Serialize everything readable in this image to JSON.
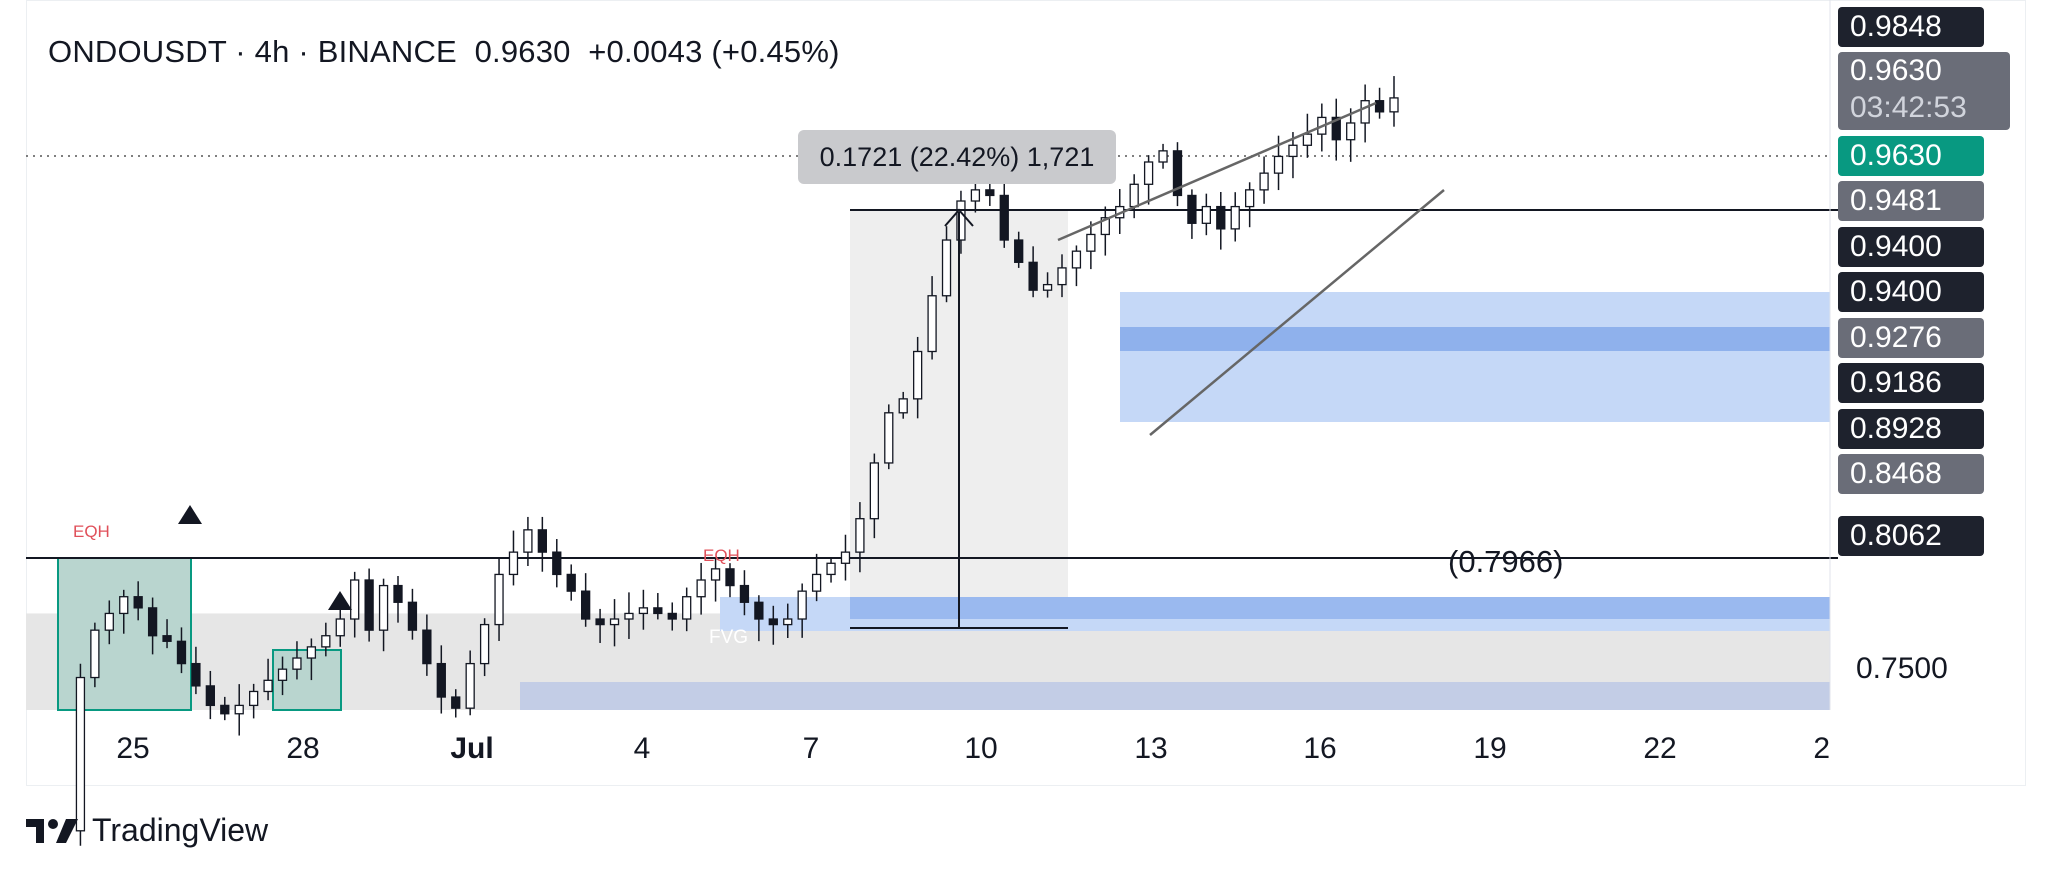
{
  "header": {
    "symbol": "ONDOUSDT",
    "separator_1": "·",
    "interval": "4h",
    "separator_2": "·",
    "exchange": "BINANCE",
    "last_price": "0.9630",
    "change": "+0.0043 (+0.45%)"
  },
  "price_axis": {
    "badges": [
      {
        "label": "0.9848",
        "style": "dark"
      },
      {
        "label": "0.9630",
        "style": "green"
      },
      {
        "label": "0.9481",
        "style": "gray"
      },
      {
        "label": "0.9400",
        "style": "dark"
      },
      {
        "label": "0.9400",
        "style": "dark"
      },
      {
        "label": "0.9276",
        "style": "gray"
      },
      {
        "label": "0.9186",
        "style": "dark"
      },
      {
        "label": "0.8928",
        "style": "dark"
      },
      {
        "label": "0.8468",
        "style": "gray"
      },
      {
        "label": "0.8062",
        "style": "dark"
      }
    ],
    "last_badge_price": "0.9630",
    "last_badge_countdown": "03:42:53",
    "plain_label": "0.7500"
  },
  "annotations": {
    "measure_label": "0.1721 (22.42%) 1,721",
    "level_label": "(0.7966)",
    "eqh_left": "EQH",
    "eqh_mid": "EQH",
    "fvg": "FVG"
  },
  "brand": {
    "name": "TradingView"
  },
  "colors": {
    "up_candle": "#ffffff",
    "candle_outline": "#131722",
    "zone_blue": "#c5d8f7",
    "zone_blue_dark": "#8fb1ec",
    "zone_gray": "#e6e6e6",
    "zone_teal": "#b9d5cf",
    "accent_green": "#089981"
  },
  "chart_data": {
    "type": "candlestick",
    "symbol": "ONDOUSDT",
    "interval": "4h",
    "exchange": "BINANCE",
    "x_ticks": [
      "25",
      "28",
      "Jul",
      "4",
      "7",
      "10",
      "13",
      "16",
      "19",
      "22",
      "25"
    ],
    "y_ticks": [
      "0.9848",
      "0.9630",
      "0.9481",
      "0.9400",
      "0.9400",
      "0.9276",
      "0.9186",
      "0.8928",
      "0.8468",
      "0.8062",
      "0.7500"
    ],
    "ylim": [
      0.74,
      0.99
    ],
    "horizontal_levels": [
      0.963,
      0.94,
      0.7966
    ],
    "measure": {
      "change": 0.1721,
      "percent": 22.42,
      "ticks": 1721,
      "from": 0.7679,
      "to": 0.94
    },
    "close_path": [
      0.7,
      0.755,
      0.772,
      0.778,
      0.784,
      0.78,
      0.77,
      0.768,
      0.76,
      0.752,
      0.745,
      0.742,
      0.745,
      0.75,
      0.754,
      0.758,
      0.762,
      0.766,
      0.77,
      0.776,
      0.79,
      0.772,
      0.788,
      0.782,
      0.772,
      0.76,
      0.748,
      0.744,
      0.76,
      0.774,
      0.792,
      0.8,
      0.808,
      0.8,
      0.792,
      0.786,
      0.776,
      0.774,
      0.776,
      0.778,
      0.78,
      0.778,
      0.776,
      0.784,
      0.79,
      0.794,
      0.788,
      0.782,
      0.776,
      0.774,
      0.776,
      0.786,
      0.792,
      0.796,
      0.8,
      0.812,
      0.832,
      0.85,
      0.855,
      0.872,
      0.892,
      0.912,
      0.926,
      0.93,
      0.928,
      0.912,
      0.904,
      0.894,
      0.896,
      0.902,
      0.908,
      0.914,
      0.92,
      0.924,
      0.932,
      0.94,
      0.944,
      0.928,
      0.918,
      0.924,
      0.916,
      0.924,
      0.93,
      0.936,
      0.942,
      0.946,
      0.95,
      0.956,
      0.948,
      0.954,
      0.962,
      0.958,
      0.963
    ],
    "zones": [
      {
        "kind": "demand",
        "low": 0.8928,
        "high": 0.9276
      },
      {
        "kind": "demand",
        "low": 0.9186,
        "high": 0.9276
      },
      {
        "kind": "fvg",
        "low": 0.768,
        "high": 0.78
      },
      {
        "kind": "range",
        "low": 0.74,
        "high": 0.778
      }
    ]
  }
}
